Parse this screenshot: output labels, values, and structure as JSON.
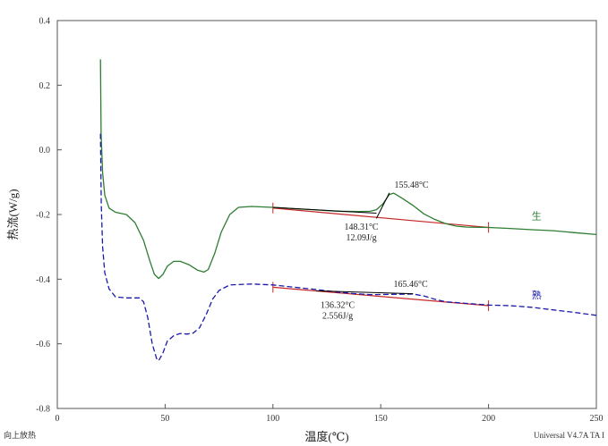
{
  "chart_data": {
    "type": "line",
    "xlabel": "温度(℃)",
    "ylabel": "热流(W/g)",
    "xlim": [
      0,
      250
    ],
    "ylim": [
      -0.8,
      0.4
    ],
    "x_ticks": [
      0,
      50,
      100,
      150,
      200,
      250
    ],
    "y_ticks": [
      0.4,
      0.2,
      0.0,
      -0.2,
      -0.4,
      -0.6,
      -0.8
    ],
    "y_tick_labels": [
      "0.4",
      "0.2",
      "0.0",
      "-0.2",
      "-0.4",
      "-0.6",
      "-0.8"
    ],
    "grid": false,
    "footer_left": "向上放热",
    "footer_right": "Universal V4.7A TA I",
    "series": [
      {
        "name": "生",
        "color": "#2e7d32",
        "style": "solid",
        "points": [
          [
            20,
            0.28
          ],
          [
            20.3,
            0.05
          ],
          [
            21,
            -0.07
          ],
          [
            22,
            -0.14
          ],
          [
            24,
            -0.18
          ],
          [
            27,
            -0.193
          ],
          [
            32,
            -0.2
          ],
          [
            36,
            -0.225
          ],
          [
            40,
            -0.28
          ],
          [
            43,
            -0.345
          ],
          [
            45,
            -0.385
          ],
          [
            47,
            -0.398
          ],
          [
            49,
            -0.385
          ],
          [
            51,
            -0.36
          ],
          [
            54,
            -0.345
          ],
          [
            57,
            -0.345
          ],
          [
            61,
            -0.355
          ],
          [
            65,
            -0.372
          ],
          [
            68,
            -0.378
          ],
          [
            70,
            -0.37
          ],
          [
            73,
            -0.32
          ],
          [
            76,
            -0.255
          ],
          [
            80,
            -0.2
          ],
          [
            84,
            -0.178
          ],
          [
            90,
            -0.175
          ],
          [
            100,
            -0.178
          ],
          [
            110,
            -0.182
          ],
          [
            120,
            -0.186
          ],
          [
            130,
            -0.19
          ],
          [
            140,
            -0.191
          ],
          [
            145,
            -0.19
          ],
          [
            148,
            -0.185
          ],
          [
            151,
            -0.167
          ],
          [
            154,
            -0.138
          ],
          [
            156,
            -0.134
          ],
          [
            160,
            -0.15
          ],
          [
            165,
            -0.172
          ],
          [
            170,
            -0.198
          ],
          [
            175,
            -0.215
          ],
          [
            180,
            -0.228
          ],
          [
            185,
            -0.236
          ],
          [
            190,
            -0.239
          ],
          [
            200,
            -0.24
          ],
          [
            210,
            -0.243
          ],
          [
            220,
            -0.247
          ],
          [
            230,
            -0.25
          ],
          [
            240,
            -0.256
          ],
          [
            250,
            -0.262
          ]
        ]
      },
      {
        "name": "熟",
        "color": "#1a1aaa",
        "style": "dashed",
        "points": [
          [
            20,
            0.05
          ],
          [
            20.4,
            -0.17
          ],
          [
            21,
            -0.3
          ],
          [
            22,
            -0.38
          ],
          [
            24,
            -0.43
          ],
          [
            27,
            -0.455
          ],
          [
            32,
            -0.458
          ],
          [
            38,
            -0.458
          ],
          [
            40,
            -0.47
          ],
          [
            42,
            -0.52
          ],
          [
            44,
            -0.6
          ],
          [
            46,
            -0.645
          ],
          [
            47,
            -0.652
          ],
          [
            49,
            -0.628
          ],
          [
            51,
            -0.592
          ],
          [
            54,
            -0.575
          ],
          [
            57,
            -0.568
          ],
          [
            60,
            -0.57
          ],
          [
            63,
            -0.567
          ],
          [
            66,
            -0.55
          ],
          [
            69,
            -0.51
          ],
          [
            72,
            -0.462
          ],
          [
            75,
            -0.435
          ],
          [
            80,
            -0.418
          ],
          [
            90,
            -0.415
          ],
          [
            100,
            -0.418
          ],
          [
            110,
            -0.425
          ],
          [
            120,
            -0.432
          ],
          [
            130,
            -0.44
          ],
          [
            136,
            -0.444
          ],
          [
            145,
            -0.448
          ],
          [
            155,
            -0.447
          ],
          [
            165,
            -0.446
          ],
          [
            170,
            -0.452
          ],
          [
            175,
            -0.462
          ],
          [
            180,
            -0.47
          ],
          [
            190,
            -0.475
          ],
          [
            200,
            -0.48
          ],
          [
            210,
            -0.482
          ],
          [
            220,
            -0.487
          ],
          [
            230,
            -0.495
          ],
          [
            240,
            -0.503
          ],
          [
            250,
            -0.512
          ]
        ]
      }
    ],
    "baselines": [
      {
        "color": "#c62828",
        "from": [
          100,
          -0.18
        ],
        "to": [
          200,
          -0.24
        ]
      },
      {
        "color": "#c62828",
        "from": [
          100,
          -0.425
        ],
        "to": [
          200,
          -0.482
        ]
      }
    ],
    "baseline_ticks": [
      {
        "color": "#c62828",
        "at": [
          100,
          -0.18
        ]
      },
      {
        "color": "#c62828",
        "at": [
          200,
          -0.24
        ]
      },
      {
        "color": "#c62828",
        "at": [
          100,
          -0.425
        ]
      },
      {
        "color": "#c62828",
        "at": [
          200,
          -0.482
        ]
      }
    ],
    "construction_lines": [
      {
        "color": "#000000",
        "from": [
          100,
          -0.178
        ],
        "to": [
          148,
          -0.196
        ]
      },
      {
        "color": "#000000",
        "from": [
          148,
          -0.212
        ],
        "to": [
          154,
          -0.133
        ]
      },
      {
        "color": "#000000",
        "from": [
          120,
          -0.436
        ],
        "to": [
          165,
          -0.445
        ]
      }
    ],
    "annotations": [
      {
        "text": "155.48°C",
        "at": [
          155.5,
          -0.134
        ],
        "anchor": "start",
        "dx": 2,
        "dy": -6
      },
      {
        "text": "148.31°C",
        "at": [
          141,
          -0.214
        ],
        "anchor": "middle",
        "dx": 0,
        "dy": 12
      },
      {
        "text": "12.09J/g",
        "at": [
          141,
          -0.214
        ],
        "anchor": "middle",
        "dx": 0,
        "dy": 24
      },
      {
        "text": "165.46°C",
        "at": [
          165.5,
          -0.446
        ],
        "anchor": "start",
        "dx": -23,
        "dy": -8
      },
      {
        "text": "136.32°C",
        "at": [
          130,
          -0.45
        ],
        "anchor": "middle",
        "dx": 0,
        "dy": 14
      },
      {
        "text": "2.556J/g",
        "at": [
          130,
          -0.45
        ],
        "anchor": "middle",
        "dx": 0,
        "dy": 26
      }
    ],
    "series_labels": [
      {
        "text": "生",
        "at": [
          220,
          -0.215
        ],
        "color": "#2e7d32"
      },
      {
        "text": "熟",
        "at": [
          220,
          -0.46
        ],
        "color": "#1a1aaa"
      }
    ]
  }
}
